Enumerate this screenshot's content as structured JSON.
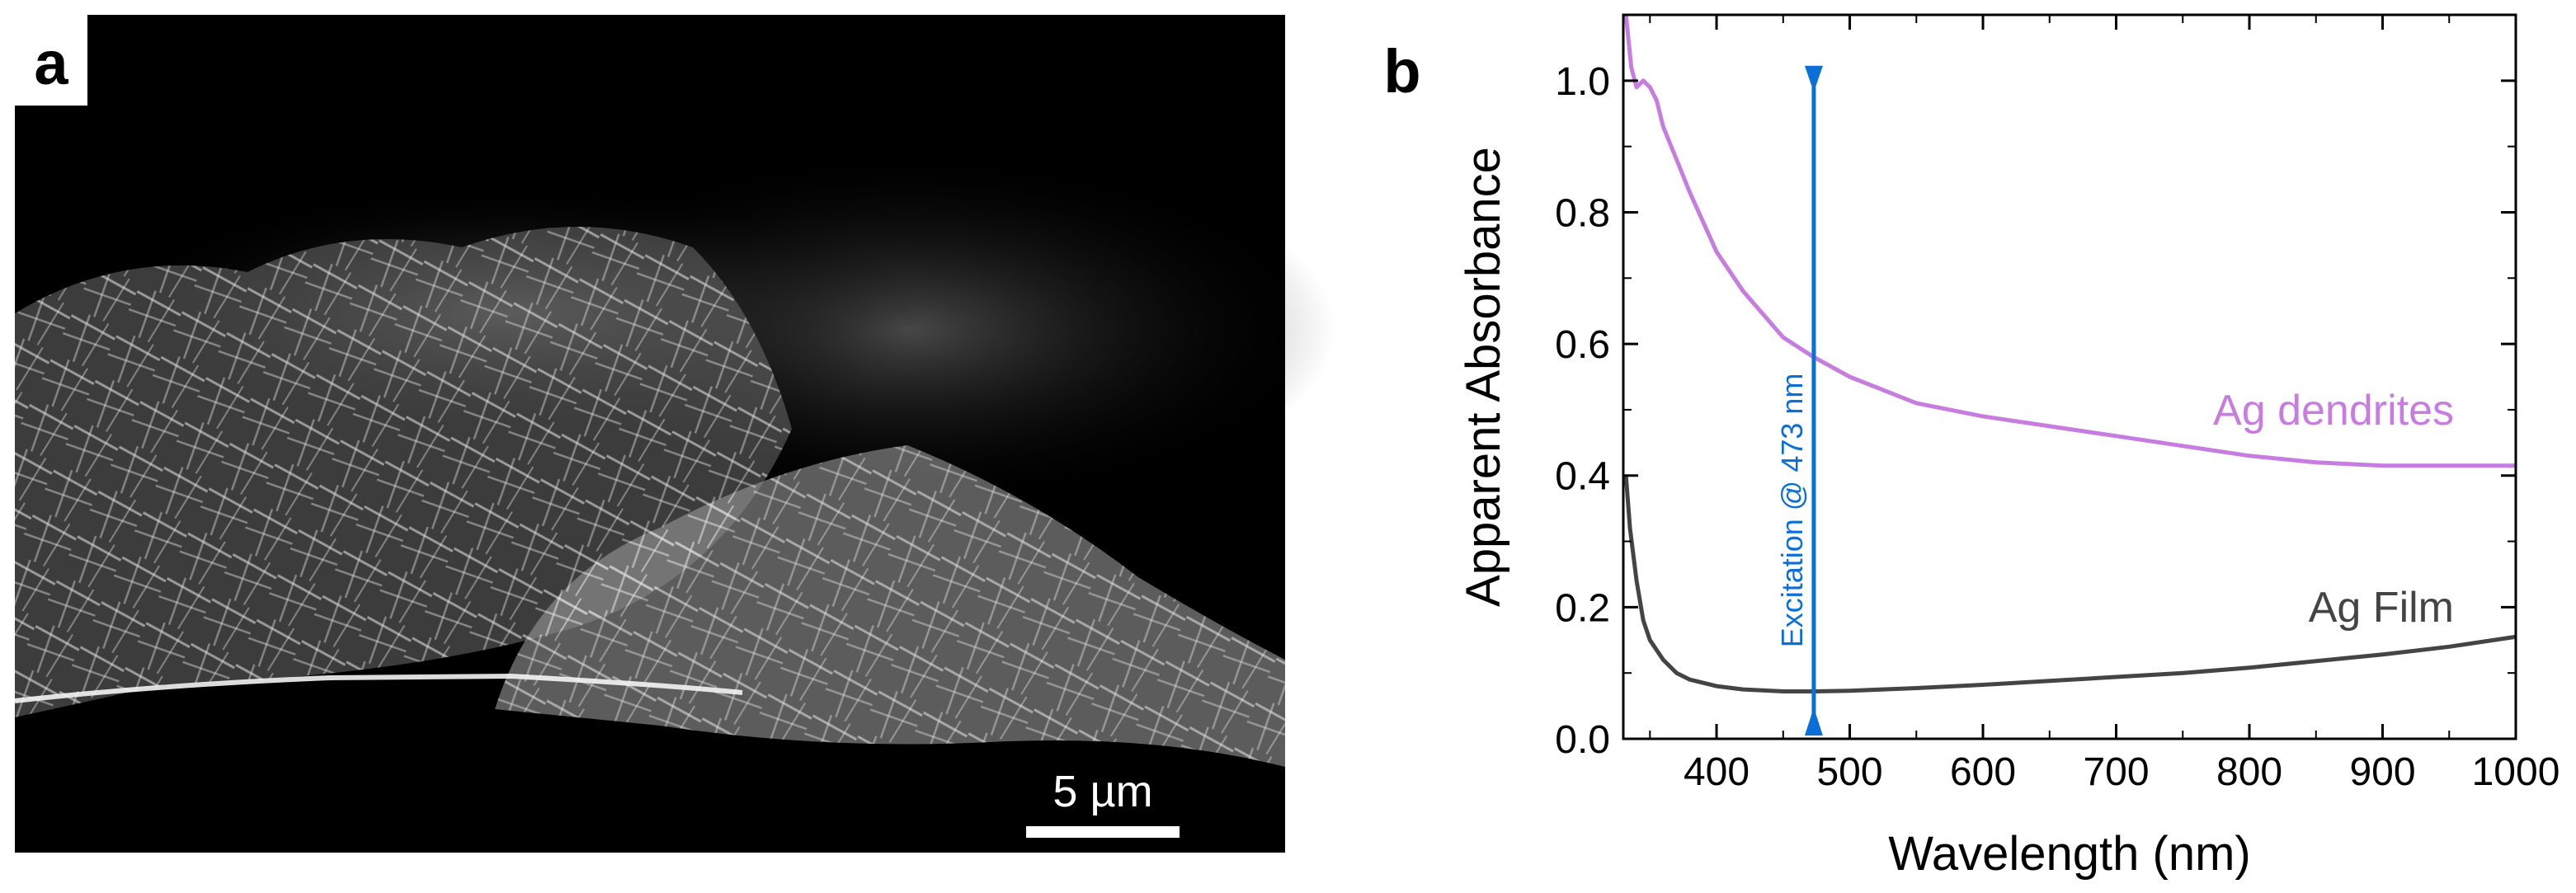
{
  "panel_a": {
    "label": "a",
    "scale_bar_label": "5 µm"
  },
  "panel_b": {
    "label": "b"
  },
  "colors": {
    "dendrites": "#c77de0",
    "film": "#444444",
    "excitation": "#0a6fd6",
    "sem_background": "#000000"
  },
  "chart_data": {
    "type": "line",
    "title": "",
    "xlabel": "Wavelength (nm)",
    "ylabel": "Apparent Absorbance",
    "xlim": [
      330,
      1000
    ],
    "ylim": [
      0.0,
      1.1
    ],
    "xticks": [
      400,
      500,
      600,
      700,
      800,
      900,
      1000
    ],
    "yticks": [
      0.0,
      0.2,
      0.4,
      0.6,
      0.8,
      1.0
    ],
    "xtick_labels": [
      "400",
      "500",
      "600",
      "700",
      "800",
      "900",
      "1000"
    ],
    "ytick_labels": [
      "0.0",
      "0.2",
      "0.4",
      "0.6",
      "0.8",
      "1.0"
    ],
    "grid": false,
    "series": [
      {
        "name": "Ag dendrites",
        "x": [
          332,
          336,
          340,
          345,
          350,
          355,
          360,
          370,
          380,
          400,
          420,
          450,
          473,
          500,
          550,
          600,
          650,
          700,
          750,
          800,
          850,
          900,
          950,
          1000
        ],
        "y": [
          1.1,
          1.02,
          0.99,
          1.0,
          0.99,
          0.97,
          0.93,
          0.88,
          0.83,
          0.74,
          0.68,
          0.61,
          0.58,
          0.55,
          0.51,
          0.49,
          0.475,
          0.46,
          0.445,
          0.43,
          0.42,
          0.415,
          0.415,
          0.415
        ]
      },
      {
        "name": "Ag Film",
        "x": [
          332,
          335,
          340,
          345,
          350,
          360,
          370,
          380,
          400,
          420,
          450,
          473,
          500,
          550,
          600,
          650,
          700,
          750,
          800,
          850,
          900,
          950,
          1000
        ],
        "y": [
          0.4,
          0.32,
          0.24,
          0.18,
          0.15,
          0.12,
          0.1,
          0.09,
          0.08,
          0.075,
          0.072,
          0.072,
          0.073,
          0.077,
          0.082,
          0.088,
          0.094,
          0.1,
          0.108,
          0.118,
          0.128,
          0.14,
          0.155
        ]
      }
    ],
    "annotations": [
      {
        "text": "Ag dendrites",
        "x": 800,
        "y": 0.49
      },
      {
        "text": "Ag Film",
        "x": 870,
        "y": 0.17
      },
      {
        "text": "Excitation @ 473 nm",
        "x": 473,
        "y_from": 0.03,
        "y_to": 0.99
      }
    ]
  }
}
